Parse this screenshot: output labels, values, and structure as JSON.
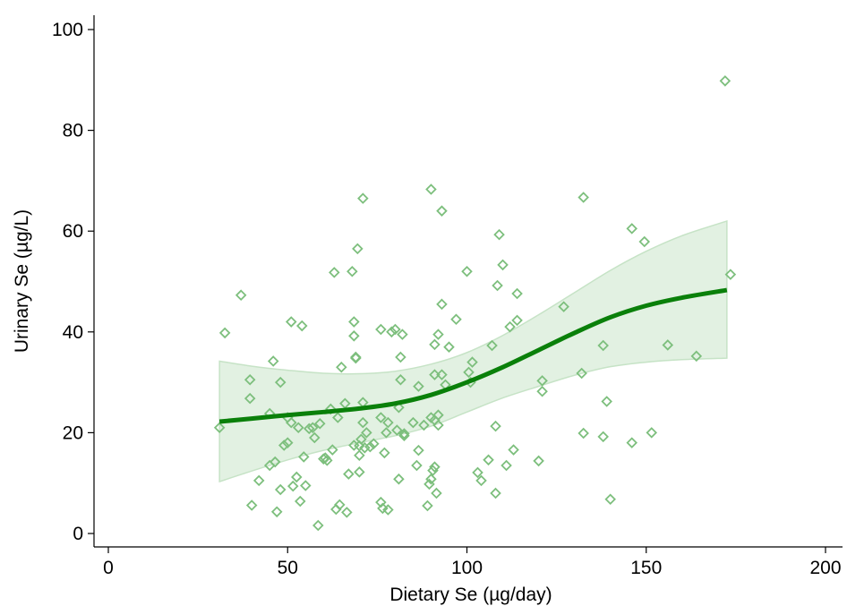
{
  "chart_data": {
    "type": "scatter",
    "xlabel": "Dietary Se (µg/day)",
    "ylabel": "Urinary Se (µg/L)",
    "xlim": [
      0,
      200
    ],
    "ylim": [
      0,
      100
    ],
    "xticks": [
      0,
      50,
      100,
      150,
      200
    ],
    "yticks": [
      0,
      20,
      40,
      60,
      80,
      100
    ],
    "grid": false,
    "colors": {
      "points": "#7dbf7d",
      "fit_line": "#0a800a",
      "ci_band": "#e2f1e2",
      "ci_edge": "#c6e3c6"
    },
    "points": [
      [
        31,
        21
      ],
      [
        32.5,
        39.8
      ],
      [
        37,
        47.3
      ],
      [
        39.5,
        30.5
      ],
      [
        39.5,
        26.8
      ],
      [
        40,
        5.6
      ],
      [
        42,
        10.5
      ],
      [
        45,
        23.8
      ],
      [
        45,
        13.5
      ],
      [
        46,
        34.2
      ],
      [
        46.5,
        14.2
      ],
      [
        47,
        4.3
      ],
      [
        48,
        30
      ],
      [
        48,
        8.7
      ],
      [
        49,
        17.5
      ],
      [
        50,
        18
      ],
      [
        50,
        23
      ],
      [
        51,
        42
      ],
      [
        51,
        22
      ],
      [
        51.5,
        9.4
      ],
      [
        52.5,
        11.2
      ],
      [
        53,
        21
      ],
      [
        53.5,
        6.4
      ],
      [
        54,
        41.2
      ],
      [
        54.5,
        15.2
      ],
      [
        55,
        9.5
      ],
      [
        56,
        20.8
      ],
      [
        57,
        21
      ],
      [
        57.5,
        19
      ],
      [
        58.5,
        1.6
      ],
      [
        59,
        21.8
      ],
      [
        60,
        14.8
      ],
      [
        60.5,
        15
      ],
      [
        61,
        14.5
      ],
      [
        62,
        24.7
      ],
      [
        62.5,
        16.6
      ],
      [
        63,
        51.8
      ],
      [
        63.5,
        4.8
      ],
      [
        64,
        23
      ],
      [
        64.5,
        5.7
      ],
      [
        65,
        33
      ],
      [
        66,
        25.8
      ],
      [
        66.5,
        4.2
      ],
      [
        67,
        11.8
      ],
      [
        68,
        52
      ],
      [
        68.5,
        39.2
      ],
      [
        68.5,
        42
      ],
      [
        68.5,
        17.5
      ],
      [
        69,
        35
      ],
      [
        69,
        34.8
      ],
      [
        69.5,
        56.5
      ],
      [
        70,
        17.4
      ],
      [
        70,
        15.5
      ],
      [
        70,
        12.2
      ],
      [
        70.5,
        18.7
      ],
      [
        71,
        66.5
      ],
      [
        71,
        22
      ],
      [
        71,
        26
      ],
      [
        71.5,
        17
      ],
      [
        72,
        20
      ],
      [
        73,
        17.2
      ],
      [
        74,
        17.8
      ],
      [
        76,
        40.5
      ],
      [
        76,
        23
      ],
      [
        76,
        6.2
      ],
      [
        76.5,
        5
      ],
      [
        77,
        16
      ],
      [
        77.5,
        20
      ],
      [
        78,
        22
      ],
      [
        78,
        4.7
      ],
      [
        79,
        40
      ],
      [
        80,
        40.5
      ],
      [
        80.5,
        20.5
      ],
      [
        81,
        25
      ],
      [
        81,
        10.8
      ],
      [
        81.5,
        30.5
      ],
      [
        81.5,
        35
      ],
      [
        82,
        39.5
      ],
      [
        82.5,
        19.8
      ],
      [
        82.5,
        19.4
      ],
      [
        85,
        22
      ],
      [
        86,
        13.5
      ],
      [
        86.5,
        16.5
      ],
      [
        86.5,
        29.2
      ],
      [
        88,
        21.5
      ],
      [
        89,
        5.5
      ],
      [
        89.5,
        9.8
      ],
      [
        90,
        68.3
      ],
      [
        90,
        23
      ],
      [
        90,
        10.8
      ],
      [
        90.5,
        12.5
      ],
      [
        91,
        37.5
      ],
      [
        91,
        22.5
      ],
      [
        91,
        31.5
      ],
      [
        91,
        13.2
      ],
      [
        91.5,
        8
      ],
      [
        92,
        21.5
      ],
      [
        92,
        23.5
      ],
      [
        92,
        39.5
      ],
      [
        93,
        64
      ],
      [
        93,
        45.5
      ],
      [
        93,
        31.5
      ],
      [
        94,
        29.5
      ],
      [
        95,
        37
      ],
      [
        97,
        42.5
      ],
      [
        100,
        52
      ],
      [
        100.5,
        32
      ],
      [
        101,
        30
      ],
      [
        101.5,
        34
      ],
      [
        103,
        12.1
      ],
      [
        104,
        10.5
      ],
      [
        106,
        14.6
      ],
      [
        107,
        37.3
      ],
      [
        108,
        21.3
      ],
      [
        108,
        8
      ],
      [
        108.5,
        49.2
      ],
      [
        109,
        59.3
      ],
      [
        110,
        53.3
      ],
      [
        111,
        13.5
      ],
      [
        112,
        41
      ],
      [
        113,
        16.6
      ],
      [
        114,
        42.3
      ],
      [
        114,
        47.6
      ],
      [
        120,
        14.4
      ],
      [
        121,
        30.3
      ],
      [
        121,
        28.2
      ],
      [
        127,
        45
      ],
      [
        132,
        31.8
      ],
      [
        132.5,
        66.7
      ],
      [
        132.5,
        19.9
      ],
      [
        138,
        19.2
      ],
      [
        138,
        37.3
      ],
      [
        139,
        26.2
      ],
      [
        140,
        6.8
      ],
      [
        146,
        60.5
      ],
      [
        146,
        18
      ],
      [
        149.5,
        57.9
      ],
      [
        151.5,
        20
      ],
      [
        156,
        37.4
      ],
      [
        164,
        35.2
      ],
      [
        172,
        89.8
      ],
      [
        173.5,
        51.4
      ]
    ],
    "fit_line": [
      [
        31,
        22.2
      ],
      [
        40,
        22.8
      ],
      [
        50,
        23.5
      ],
      [
        60,
        24.1
      ],
      [
        70,
        24.8
      ],
      [
        80,
        25.8
      ],
      [
        90,
        27.5
      ],
      [
        100,
        30
      ],
      [
        110,
        33
      ],
      [
        120,
        36.4
      ],
      [
        130,
        39.8
      ],
      [
        140,
        42.9
      ],
      [
        150,
        45.2
      ],
      [
        160,
        46.8
      ],
      [
        172.5,
        48.3
      ]
    ],
    "ci_upper": [
      [
        31,
        34.2
      ],
      [
        40,
        33.2
      ],
      [
        50,
        32.4
      ],
      [
        60,
        31.8
      ],
      [
        70,
        31.7
      ],
      [
        80,
        32.2
      ],
      [
        90,
        33.6
      ],
      [
        100,
        35.9
      ],
      [
        110,
        39.3
      ],
      [
        120,
        43.4
      ],
      [
        130,
        47.8
      ],
      [
        140,
        52.2
      ],
      [
        150,
        56
      ],
      [
        160,
        59.1
      ],
      [
        172.5,
        62
      ]
    ],
    "ci_lower": [
      [
        31,
        10.3
      ],
      [
        40,
        12.4
      ],
      [
        50,
        14.6
      ],
      [
        60,
        16.5
      ],
      [
        70,
        18
      ],
      [
        80,
        19.4
      ],
      [
        90,
        21.3
      ],
      [
        100,
        24.1
      ],
      [
        110,
        26.9
      ],
      [
        120,
        29.2
      ],
      [
        130,
        31.4
      ],
      [
        140,
        33.1
      ],
      [
        150,
        34
      ],
      [
        160,
        34.5
      ],
      [
        172.5,
        34.8
      ]
    ]
  }
}
